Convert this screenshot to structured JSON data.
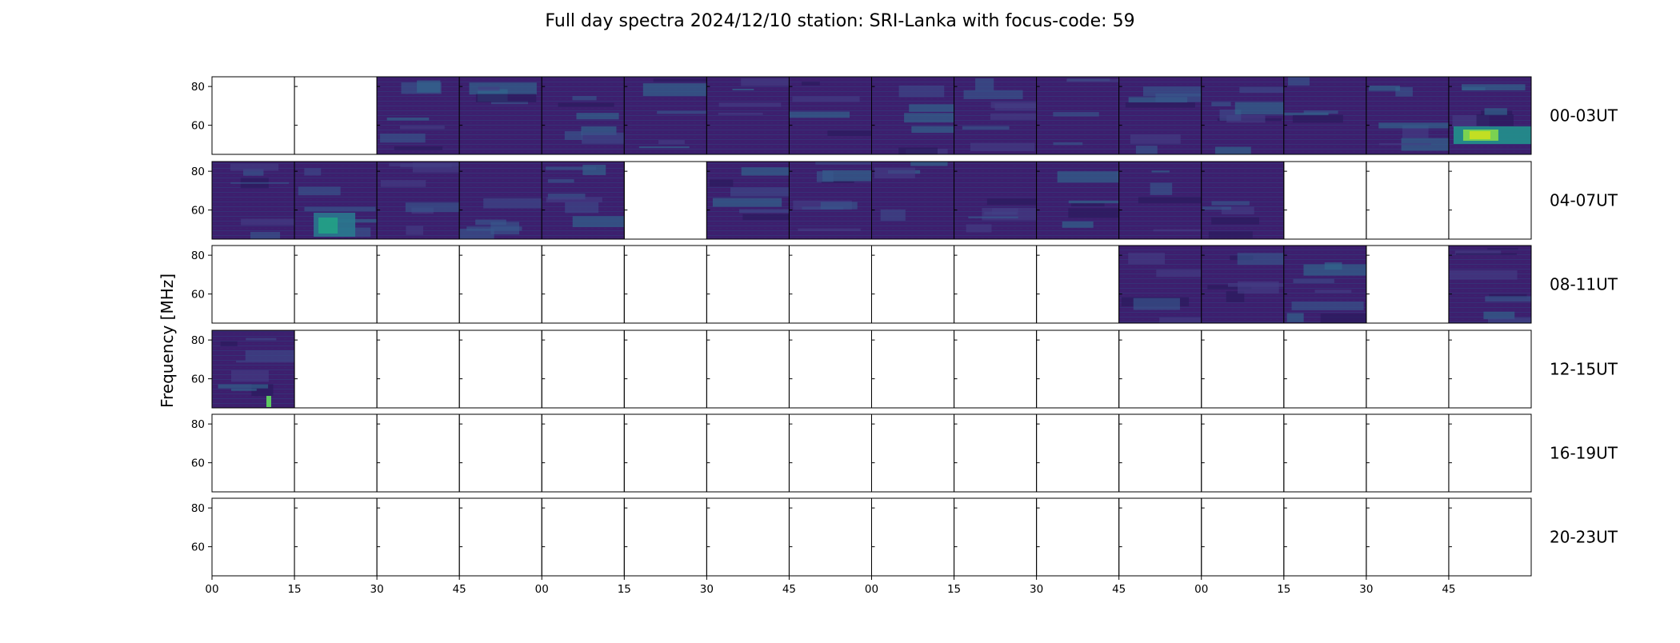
{
  "chart_data": {
    "type": "heatmap",
    "title": "Full day spectra 2024/12/10 station: SRI-Lanka with focus-code: 59",
    "ylabel": "Frequency [MHz]",
    "ylim": [
      45,
      85
    ],
    "yticks": [
      "60",
      "80"
    ],
    "xticks": [
      "00",
      "15",
      "30",
      "45",
      "00",
      "15",
      "30",
      "45",
      "00",
      "15",
      "30",
      "45",
      "00",
      "15",
      "30",
      "45"
    ],
    "colormap": "viridis",
    "rows": [
      {
        "label": "00-03UT",
        "panels": [
          0,
          0,
          1,
          1,
          1,
          1,
          1,
          1,
          1,
          1,
          1,
          1,
          1,
          1,
          1,
          1
        ]
      },
      {
        "label": "04-07UT",
        "panels": [
          1,
          1,
          1,
          1,
          1,
          0,
          1,
          1,
          1,
          1,
          1,
          1,
          1,
          0,
          0,
          0
        ]
      },
      {
        "label": "08-11UT",
        "panels": [
          0,
          0,
          0,
          0,
          0,
          0,
          0,
          0,
          0,
          0,
          0,
          1,
          1,
          1,
          0,
          1
        ]
      },
      {
        "label": "12-15UT",
        "panels": [
          1,
          0,
          0,
          0,
          0,
          0,
          0,
          0,
          0,
          0,
          0,
          0,
          0,
          0,
          0,
          0
        ]
      },
      {
        "label": "16-19UT",
        "panels": [
          0,
          0,
          0,
          0,
          0,
          0,
          0,
          0,
          0,
          0,
          0,
          0,
          0,
          0,
          0,
          0
        ]
      },
      {
        "label": "20-23UT",
        "panels": [
          0,
          0,
          0,
          0,
          0,
          0,
          0,
          0,
          0,
          0,
          0,
          0,
          0,
          0,
          0,
          0
        ]
      }
    ],
    "grid": false,
    "legend": "none"
  }
}
